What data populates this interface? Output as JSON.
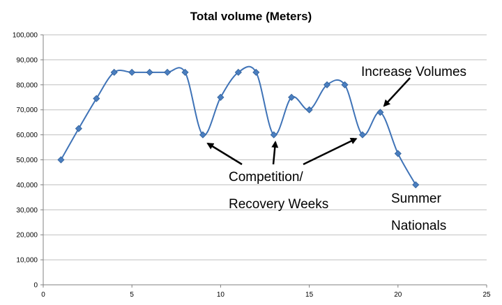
{
  "chart_data": {
    "type": "line",
    "title": "Total volume (Meters)",
    "xlabel": "",
    "ylabel": "",
    "xlim": [
      0,
      25
    ],
    "ylim": [
      0,
      100000
    ],
    "xticks": [
      "0",
      "5",
      "10",
      "15",
      "20",
      "25"
    ],
    "yticks": [
      "0",
      "10,000",
      "20,000",
      "30,000",
      "40,000",
      "50,000",
      "60,000",
      "70,000",
      "80,000",
      "90,000",
      "100,000"
    ],
    "grid": true,
    "legend": "none",
    "series": [
      {
        "color": "#3f73b7",
        "marker": "diamond",
        "smoothed": true,
        "points": [
          {
            "x": 1,
            "y": 50000
          },
          {
            "x": 2,
            "y": 62500
          },
          {
            "x": 3,
            "y": 74500
          },
          {
            "x": 4,
            "y": 85000
          },
          {
            "x": 5,
            "y": 85000
          },
          {
            "x": 6,
            "y": 85000
          },
          {
            "x": 7,
            "y": 85000
          },
          {
            "x": 8,
            "y": 85000
          },
          {
            "x": 9,
            "y": 60000
          },
          {
            "x": 10,
            "y": 75000
          },
          {
            "x": 11,
            "y": 85000
          },
          {
            "x": 12,
            "y": 85000
          },
          {
            "x": 13,
            "y": 60000
          },
          {
            "x": 14,
            "y": 75000
          },
          {
            "x": 15,
            "y": 70000
          },
          {
            "x": 16,
            "y": 80000
          },
          {
            "x": 17,
            "y": 80000
          },
          {
            "x": 18,
            "y": 60000
          },
          {
            "x": 19,
            "y": 69000
          },
          {
            "x": 20,
            "y": 52500
          },
          {
            "x": 21,
            "y": 40000
          }
        ]
      }
    ],
    "annotations": {
      "increase": "Increase Volumes",
      "competition_line1": "Competition/",
      "competition_line2": "Recovery Weeks",
      "summer_line1": "Summer",
      "summer_line2": "Nationals"
    }
  }
}
